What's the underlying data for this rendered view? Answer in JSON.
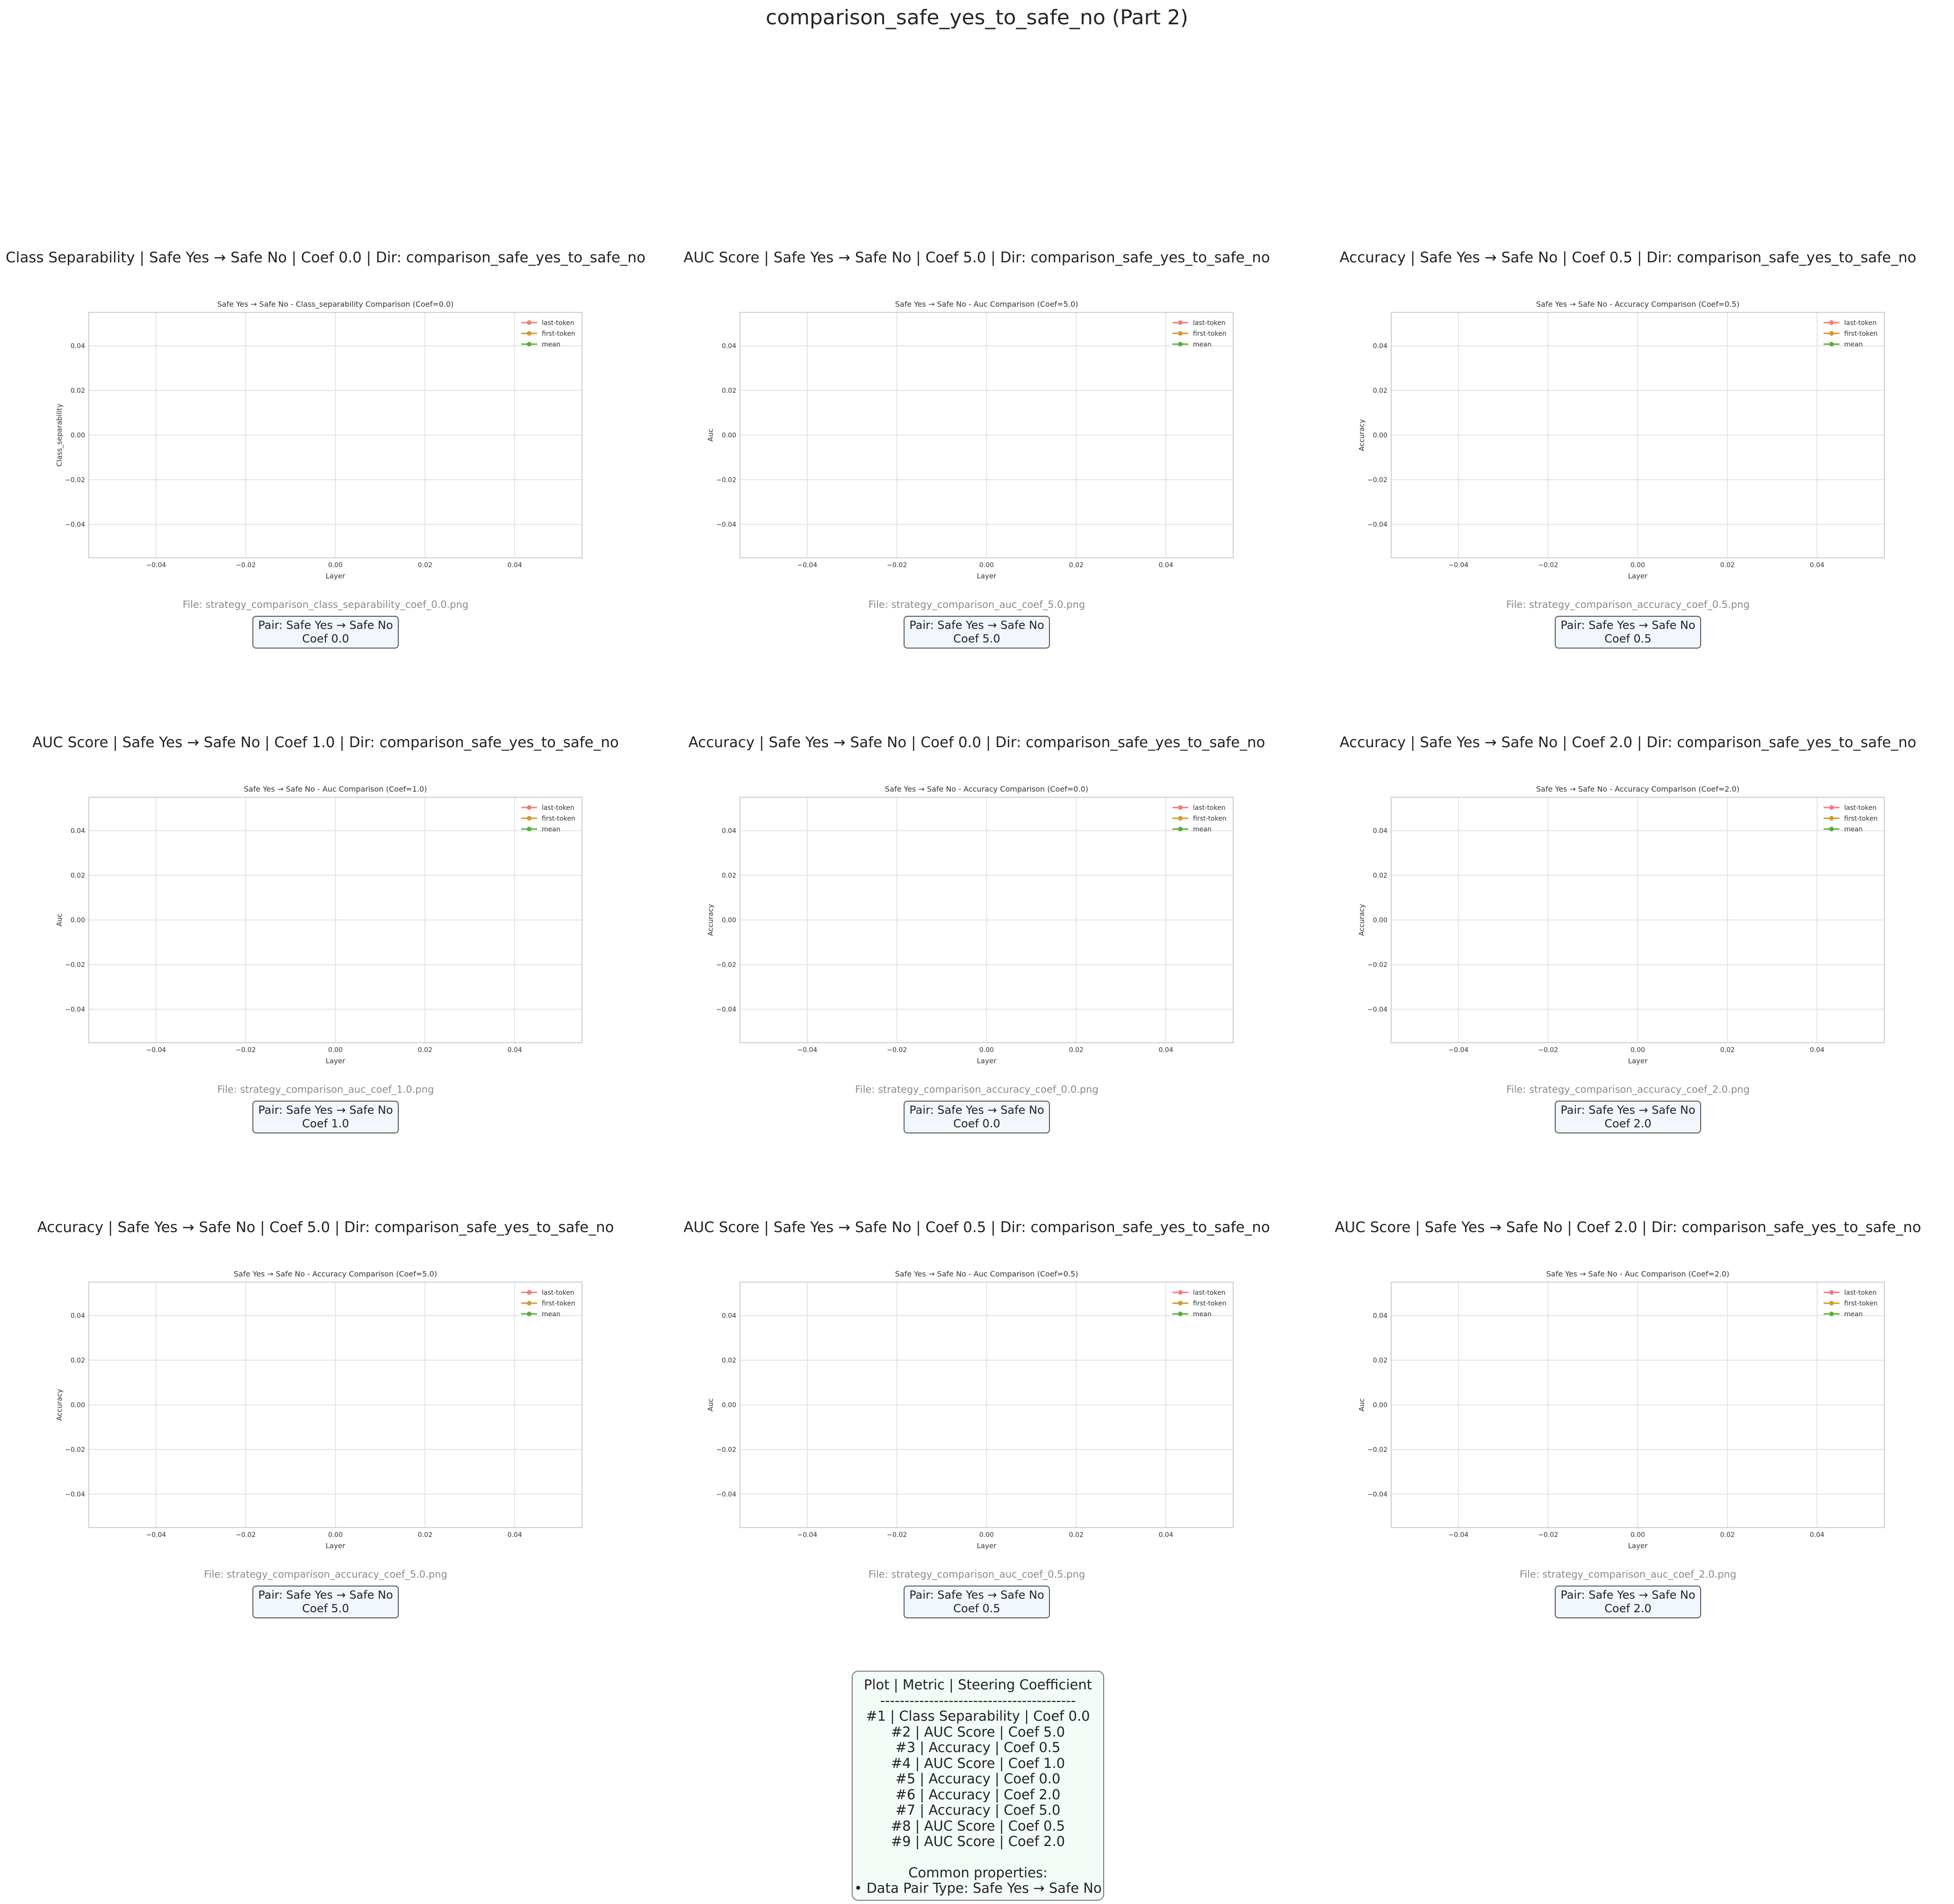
{
  "page_title": "comparison_safe_yes_to_safe_no (Part 2)",
  "chart_data": [
    {
      "type": "line",
      "panel_title": "Class Separability | Safe Yes → Safe No | Coef 0.0 | Dir: comparison_safe_yes_to_safe_no",
      "title": "Safe Yes → Safe No - Class_separability Comparison (Coef=0.0)",
      "xlabel": "Layer",
      "ylabel": "Class_separability",
      "xlim": [
        -0.055,
        0.055
      ],
      "ylim": [
        -0.055,
        0.055
      ],
      "xticks": [
        "−0.04",
        "−0.02",
        "0.00",
        "0.02",
        "0.04"
      ],
      "yticks": [
        "−0.04",
        "−0.02",
        "0.00",
        "0.02",
        "0.04"
      ],
      "grid": true,
      "legend_position": "top-right",
      "series": [
        {
          "name": "last-token",
          "color": "#f47c7c",
          "x": [],
          "y": []
        },
        {
          "name": "first-token",
          "color": "#cf9a2f",
          "x": [],
          "y": []
        },
        {
          "name": "mean",
          "color": "#5dad3c",
          "x": [],
          "y": []
        }
      ],
      "file_label": "File: strategy_comparison_class_separability_coef_0.0.png",
      "pair_line": "Pair: Safe Yes → Safe No",
      "coef_line": "Coef 0.0"
    },
    {
      "type": "line",
      "panel_title": "AUC Score | Safe Yes → Safe No | Coef 5.0 | Dir: comparison_safe_yes_to_safe_no",
      "title": "Safe Yes → Safe No - Auc Comparison (Coef=5.0)",
      "xlabel": "Layer",
      "ylabel": "Auc",
      "xlim": [
        -0.055,
        0.055
      ],
      "ylim": [
        -0.055,
        0.055
      ],
      "xticks": [
        "−0.04",
        "−0.02",
        "0.00",
        "0.02",
        "0.04"
      ],
      "yticks": [
        "−0.04",
        "−0.02",
        "0.00",
        "0.02",
        "0.04"
      ],
      "grid": true,
      "legend_position": "top-right",
      "series": [
        {
          "name": "last-token",
          "color": "#f47c7c",
          "x": [],
          "y": []
        },
        {
          "name": "first-token",
          "color": "#cf9a2f",
          "x": [],
          "y": []
        },
        {
          "name": "mean",
          "color": "#5dad3c",
          "x": [],
          "y": []
        }
      ],
      "file_label": "File: strategy_comparison_auc_coef_5.0.png",
      "pair_line": "Pair: Safe Yes → Safe No",
      "coef_line": "Coef 5.0"
    },
    {
      "type": "line",
      "panel_title": "Accuracy | Safe Yes → Safe No | Coef 0.5 | Dir: comparison_safe_yes_to_safe_no",
      "title": "Safe Yes → Safe No - Accuracy Comparison (Coef=0.5)",
      "xlabel": "Layer",
      "ylabel": "Accuracy",
      "xlim": [
        -0.055,
        0.055
      ],
      "ylim": [
        -0.055,
        0.055
      ],
      "xticks": [
        "−0.04",
        "−0.02",
        "0.00",
        "0.02",
        "0.04"
      ],
      "yticks": [
        "−0.04",
        "−0.02",
        "0.00",
        "0.02",
        "0.04"
      ],
      "grid": true,
      "legend_position": "top-right",
      "series": [
        {
          "name": "last-token",
          "color": "#f47c7c",
          "x": [],
          "y": []
        },
        {
          "name": "first-token",
          "color": "#cf9a2f",
          "x": [],
          "y": []
        },
        {
          "name": "mean",
          "color": "#5dad3c",
          "x": [],
          "y": []
        }
      ],
      "file_label": "File: strategy_comparison_accuracy_coef_0.5.png",
      "pair_line": "Pair: Safe Yes → Safe No",
      "coef_line": "Coef 0.5"
    },
    {
      "type": "line",
      "panel_title": "AUC Score | Safe Yes → Safe No | Coef 1.0 | Dir: comparison_safe_yes_to_safe_no",
      "title": "Safe Yes → Safe No - Auc Comparison (Coef=1.0)",
      "xlabel": "Layer",
      "ylabel": "Auc",
      "xlim": [
        -0.055,
        0.055
      ],
      "ylim": [
        -0.055,
        0.055
      ],
      "xticks": [
        "−0.04",
        "−0.02",
        "0.00",
        "0.02",
        "0.04"
      ],
      "yticks": [
        "−0.04",
        "−0.02",
        "0.00",
        "0.02",
        "0.04"
      ],
      "grid": true,
      "legend_position": "top-right",
      "series": [
        {
          "name": "last-token",
          "color": "#f47c7c",
          "x": [],
          "y": []
        },
        {
          "name": "first-token",
          "color": "#cf9a2f",
          "x": [],
          "y": []
        },
        {
          "name": "mean",
          "color": "#5dad3c",
          "x": [],
          "y": []
        }
      ],
      "file_label": "File: strategy_comparison_auc_coef_1.0.png",
      "pair_line": "Pair: Safe Yes → Safe No",
      "coef_line": "Coef 1.0"
    },
    {
      "type": "line",
      "panel_title": "Accuracy | Safe Yes → Safe No | Coef 0.0 | Dir: comparison_safe_yes_to_safe_no",
      "title": "Safe Yes → Safe No - Accuracy Comparison (Coef=0.0)",
      "xlabel": "Layer",
      "ylabel": "Accuracy",
      "xlim": [
        -0.055,
        0.055
      ],
      "ylim": [
        -0.055,
        0.055
      ],
      "xticks": [
        "−0.04",
        "−0.02",
        "0.00",
        "0.02",
        "0.04"
      ],
      "yticks": [
        "−0.04",
        "−0.02",
        "0.00",
        "0.02",
        "0.04"
      ],
      "grid": true,
      "legend_position": "top-right",
      "series": [
        {
          "name": "last-token",
          "color": "#f47c7c",
          "x": [],
          "y": []
        },
        {
          "name": "first-token",
          "color": "#cf9a2f",
          "x": [],
          "y": []
        },
        {
          "name": "mean",
          "color": "#5dad3c",
          "x": [],
          "y": []
        }
      ],
      "file_label": "File: strategy_comparison_accuracy_coef_0.0.png",
      "pair_line": "Pair: Safe Yes → Safe No",
      "coef_line": "Coef 0.0"
    },
    {
      "type": "line",
      "panel_title": "Accuracy | Safe Yes → Safe No | Coef 2.0 | Dir: comparison_safe_yes_to_safe_no",
      "title": "Safe Yes → Safe No - Accuracy Comparison (Coef=2.0)",
      "xlabel": "Layer",
      "ylabel": "Accuracy",
      "xlim": [
        -0.055,
        0.055
      ],
      "ylim": [
        -0.055,
        0.055
      ],
      "xticks": [
        "−0.04",
        "−0.02",
        "0.00",
        "0.02",
        "0.04"
      ],
      "yticks": [
        "−0.04",
        "−0.02",
        "0.00",
        "0.02",
        "0.04"
      ],
      "grid": true,
      "legend_position": "top-right",
      "series": [
        {
          "name": "last-token",
          "color": "#f47c7c",
          "x": [],
          "y": []
        },
        {
          "name": "first-token",
          "color": "#cf9a2f",
          "x": [],
          "y": []
        },
        {
          "name": "mean",
          "color": "#5dad3c",
          "x": [],
          "y": []
        }
      ],
      "file_label": "File: strategy_comparison_accuracy_coef_2.0.png",
      "pair_line": "Pair: Safe Yes → Safe No",
      "coef_line": "Coef 2.0"
    },
    {
      "type": "line",
      "panel_title": "Accuracy | Safe Yes → Safe No | Coef 5.0 | Dir: comparison_safe_yes_to_safe_no",
      "title": "Safe Yes → Safe No - Accuracy Comparison (Coef=5.0)",
      "xlabel": "Layer",
      "ylabel": "Accuracy",
      "xlim": [
        -0.055,
        0.055
      ],
      "ylim": [
        -0.055,
        0.055
      ],
      "xticks": [
        "−0.04",
        "−0.02",
        "0.00",
        "0.02",
        "0.04"
      ],
      "yticks": [
        "−0.04",
        "−0.02",
        "0.00",
        "0.02",
        "0.04"
      ],
      "grid": true,
      "legend_position": "top-right",
      "series": [
        {
          "name": "last-token",
          "color": "#f47c7c",
          "x": [],
          "y": []
        },
        {
          "name": "first-token",
          "color": "#cf9a2f",
          "x": [],
          "y": []
        },
        {
          "name": "mean",
          "color": "#5dad3c",
          "x": [],
          "y": []
        }
      ],
      "file_label": "File: strategy_comparison_accuracy_coef_5.0.png",
      "pair_line": "Pair: Safe Yes → Safe No",
      "coef_line": "Coef 5.0"
    },
    {
      "type": "line",
      "panel_title": "AUC Score | Safe Yes → Safe No | Coef 0.5 | Dir: comparison_safe_yes_to_safe_no",
      "title": "Safe Yes → Safe No - Auc Comparison (Coef=0.5)",
      "xlabel": "Layer",
      "ylabel": "Auc",
      "xlim": [
        -0.055,
        0.055
      ],
      "ylim": [
        -0.055,
        0.055
      ],
      "xticks": [
        "−0.04",
        "−0.02",
        "0.00",
        "0.02",
        "0.04"
      ],
      "yticks": [
        "−0.04",
        "−0.02",
        "0.00",
        "0.02",
        "0.04"
      ],
      "grid": true,
      "legend_position": "top-right",
      "series": [
        {
          "name": "last-token",
          "color": "#f47c7c",
          "x": [],
          "y": []
        },
        {
          "name": "first-token",
          "color": "#cf9a2f",
          "x": [],
          "y": []
        },
        {
          "name": "mean",
          "color": "#5dad3c",
          "x": [],
          "y": []
        }
      ],
      "file_label": "File: strategy_comparison_auc_coef_0.5.png",
      "pair_line": "Pair: Safe Yes → Safe No",
      "coef_line": "Coef 0.5"
    },
    {
      "type": "line",
      "panel_title": "AUC Score | Safe Yes → Safe No | Coef 2.0 | Dir: comparison_safe_yes_to_safe_no",
      "title": "Safe Yes → Safe No - Auc Comparison (Coef=2.0)",
      "xlabel": "Layer",
      "ylabel": "Auc",
      "xlim": [
        -0.055,
        0.055
      ],
      "ylim": [
        -0.055,
        0.055
      ],
      "xticks": [
        "−0.04",
        "−0.02",
        "0.00",
        "0.02",
        "0.04"
      ],
      "yticks": [
        "−0.04",
        "−0.02",
        "0.00",
        "0.02",
        "0.04"
      ],
      "grid": true,
      "legend_position": "top-right",
      "series": [
        {
          "name": "last-token",
          "color": "#f47c7c",
          "x": [],
          "y": []
        },
        {
          "name": "first-token",
          "color": "#cf9a2f",
          "x": [],
          "y": []
        },
        {
          "name": "mean",
          "color": "#5dad3c",
          "x": [],
          "y": []
        }
      ],
      "file_label": "File: strategy_comparison_auc_coef_2.0.png",
      "pair_line": "Pair: Safe Yes → Safe No",
      "coef_line": "Coef 2.0"
    }
  ],
  "summary": {
    "header": "Plot | Metric | Steering Coefficient",
    "separator": "----------------------------------------",
    "rows": [
      "#1 | Class Separability | Coef 0.0",
      "#2 | AUC Score | Coef 5.0",
      "#3 | Accuracy | Coef 0.5",
      "#4 | AUC Score | Coef 1.0",
      "#5 | Accuracy | Coef 0.0",
      "#6 | Accuracy | Coef 2.0",
      "#7 | Accuracy | Coef 5.0",
      "#8 | AUC Score | Coef 0.5",
      "#9 | AUC Score | Coef 2.0"
    ],
    "common_heading": "Common properties:",
    "common_items": [
      "• Data Pair Type: Safe Yes → Safe No"
    ]
  }
}
